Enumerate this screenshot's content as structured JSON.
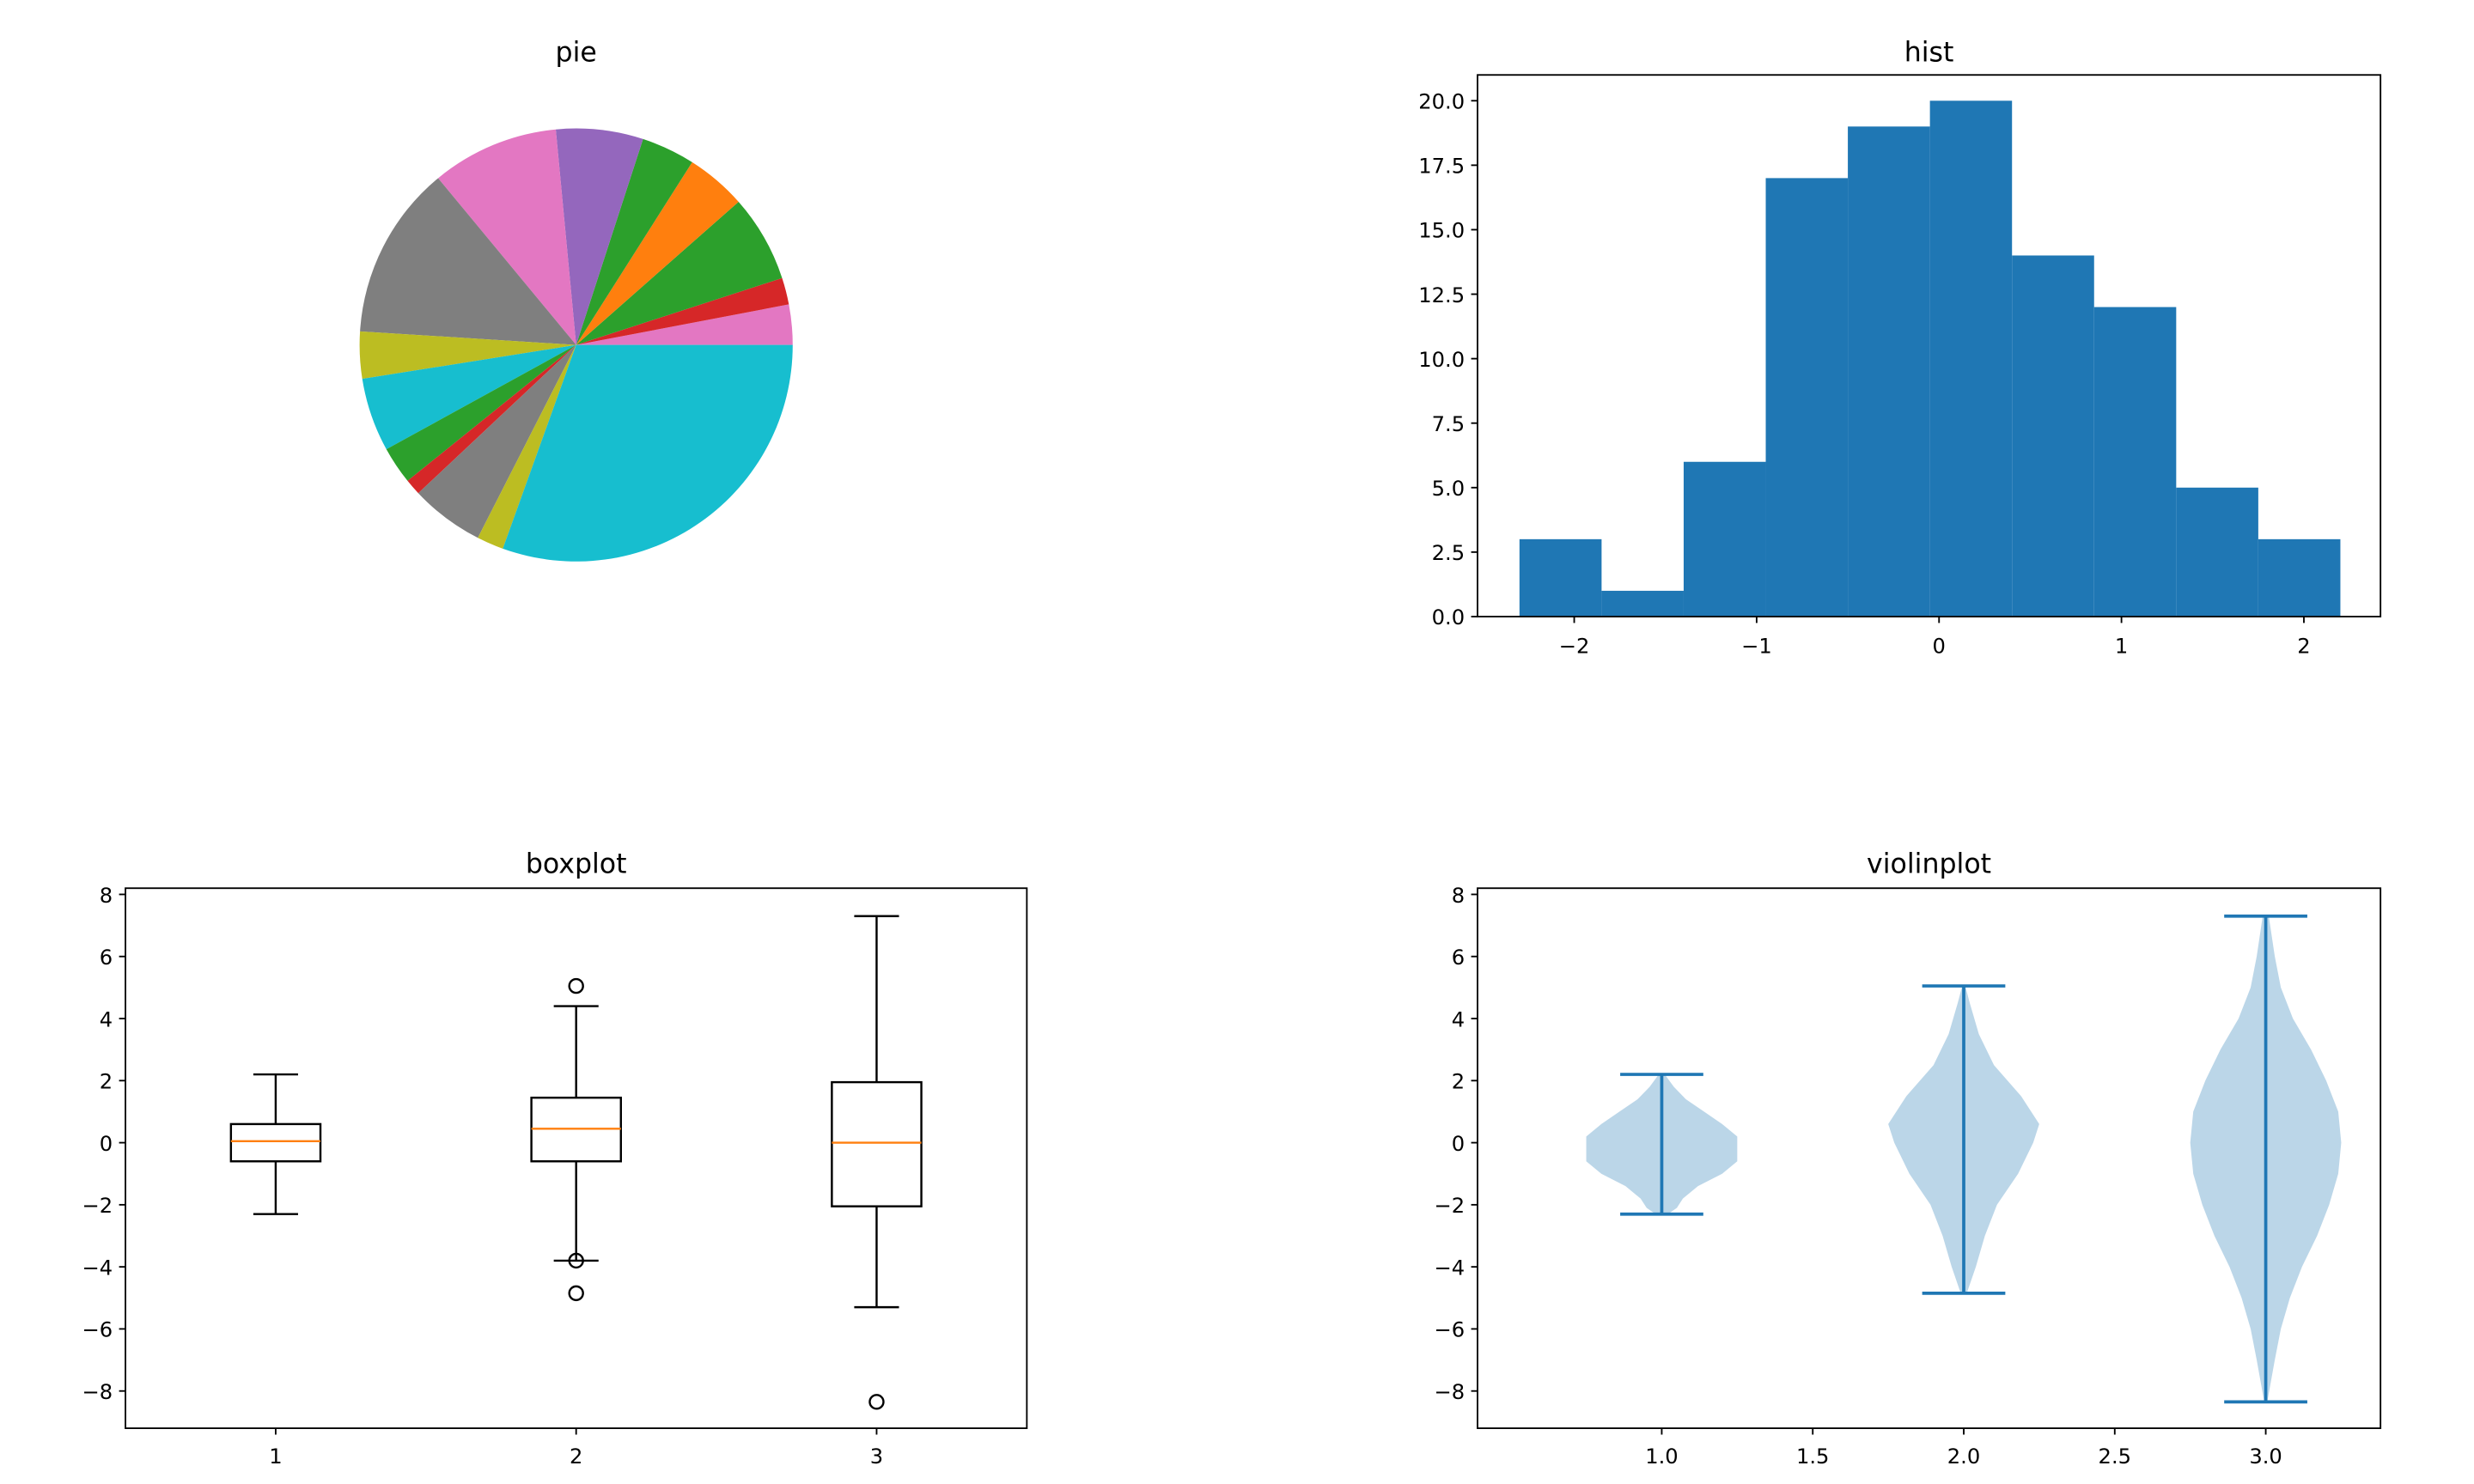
{
  "chart_data": [
    {
      "type": "pie",
      "title": "pie",
      "slices": [
        {
          "value": 3.0,
          "color": "#e377c2"
        },
        {
          "value": 2.0,
          "color": "#d62728"
        },
        {
          "value": 6.5,
          "color": "#2ca02c"
        },
        {
          "value": 4.5,
          "color": "#ff7f0e"
        },
        {
          "value": 4.0,
          "color": "#2ca02c"
        },
        {
          "value": 6.5,
          "color": "#9467bd"
        },
        {
          "value": 9.5,
          "color": "#e377c2"
        },
        {
          "value": 13.0,
          "color": "#7f7f7f"
        },
        {
          "value": 3.5,
          "color": "#bcbd22"
        },
        {
          "value": 5.5,
          "color": "#17becf"
        },
        {
          "value": 2.8,
          "color": "#2ca02c"
        },
        {
          "value": 1.2,
          "color": "#d62728"
        },
        {
          "value": 5.5,
          "color": "#7f7f7f"
        },
        {
          "value": 2.0,
          "color": "#bcbd22"
        },
        {
          "value": 30.5,
          "color": "#17becf"
        }
      ]
    },
    {
      "type": "bar",
      "title": "hist",
      "bin_edges": [
        -2.3,
        -1.85,
        -1.4,
        -0.95,
        -0.5,
        -0.05,
        0.4,
        0.85,
        1.3,
        1.75,
        2.2
      ],
      "counts": [
        3,
        1,
        6,
        17,
        19,
        20,
        14,
        12,
        5,
        3
      ],
      "color": "#1f77b4",
      "xlim": [
        -2.53,
        2.42
      ],
      "ylim": [
        0,
        21
      ],
      "xticks": [
        -2,
        -1,
        0,
        1,
        2
      ],
      "xtick_labels": [
        "−2",
        "−1",
        "0",
        "1",
        "2"
      ],
      "yticks": [
        0,
        2.5,
        5,
        7.5,
        10,
        12.5,
        15,
        17.5,
        20
      ],
      "ytick_labels": [
        "0.0",
        "2.5",
        "5.0",
        "7.5",
        "10.0",
        "12.5",
        "15.0",
        "17.5",
        "20.0"
      ]
    },
    {
      "type": "boxplot",
      "title": "boxplot",
      "xlim": [
        0.5,
        3.5
      ],
      "ylim": [
        -9.2,
        8.2
      ],
      "xticks": [
        1,
        2,
        3
      ],
      "xtick_labels": [
        "1",
        "2",
        "3"
      ],
      "yticks": [
        -8,
        -6,
        -4,
        -2,
        0,
        2,
        4,
        6,
        8
      ],
      "ytick_labels": [
        "−8",
        "−6",
        "−4",
        "−2",
        "0",
        "2",
        "4",
        "6",
        "8"
      ],
      "median_color": "#ff7f0e",
      "boxes": [
        {
          "pos": 1,
          "whislo": -2.3,
          "q1": -0.6,
          "med": 0.05,
          "q3": 0.6,
          "whishi": 2.2,
          "fliers": []
        },
        {
          "pos": 2,
          "whislo": -3.8,
          "q1": -0.6,
          "med": 0.45,
          "q3": 1.45,
          "whishi": 4.4,
          "fliers": [
            5.05,
            -3.8,
            -4.85
          ]
        },
        {
          "pos": 3,
          "whislo": -5.3,
          "q1": -2.05,
          "med": 0.0,
          "q3": 1.95,
          "whishi": 7.3,
          "fliers": [
            -8.35
          ]
        }
      ]
    },
    {
      "type": "violin",
      "title": "violinplot",
      "xlim": [
        0.39,
        3.38
      ],
      "ylim": [
        -9.2,
        8.2
      ],
      "xticks": [
        1.0,
        1.5,
        2.0,
        2.5,
        3.0
      ],
      "xtick_labels": [
        "1.0",
        "1.5",
        "2.0",
        "2.5",
        "3.0"
      ],
      "yticks": [
        -8,
        -6,
        -4,
        -2,
        0,
        2,
        4,
        6,
        8
      ],
      "ytick_labels": [
        "−8",
        "−6",
        "−4",
        "−2",
        "0",
        "2",
        "4",
        "6",
        "8"
      ],
      "body_color": "#1f77b4",
      "line_color": "#1f77b4",
      "violins": [
        {
          "pos": 1.0,
          "min": -2.3,
          "max": 2.2,
          "profile": [
            [
              -2.3,
              0.02
            ],
            [
              -2.1,
              0.05
            ],
            [
              -1.8,
              0.07
            ],
            [
              -1.4,
              0.12
            ],
            [
              -1.0,
              0.2
            ],
            [
              -0.6,
              0.25
            ],
            [
              -0.2,
              0.25
            ],
            [
              0.2,
              0.25
            ],
            [
              0.6,
              0.2
            ],
            [
              1.0,
              0.14
            ],
            [
              1.4,
              0.08
            ],
            [
              1.8,
              0.04
            ],
            [
              2.2,
              0.01
            ]
          ]
        },
        {
          "pos": 2.0,
          "min": -4.85,
          "max": 5.05,
          "profile": [
            [
              -4.85,
              0.01
            ],
            [
              -4.0,
              0.04
            ],
            [
              -3.0,
              0.07
            ],
            [
              -2.0,
              0.11
            ],
            [
              -1.0,
              0.18
            ],
            [
              0.0,
              0.23
            ],
            [
              0.6,
              0.25
            ],
            [
              1.5,
              0.19
            ],
            [
              2.5,
              0.1
            ],
            [
              3.5,
              0.05
            ],
            [
              4.5,
              0.02
            ],
            [
              5.05,
              0.005
            ]
          ]
        },
        {
          "pos": 3.0,
          "min": -8.35,
          "max": 7.3,
          "profile": [
            [
              -8.35,
              0.005
            ],
            [
              -7.0,
              0.03
            ],
            [
              -6.0,
              0.05
            ],
            [
              -5.0,
              0.08
            ],
            [
              -4.0,
              0.12
            ],
            [
              -3.0,
              0.17
            ],
            [
              -2.0,
              0.21
            ],
            [
              -1.0,
              0.24
            ],
            [
              0.0,
              0.25
            ],
            [
              1.0,
              0.24
            ],
            [
              2.0,
              0.2
            ],
            [
              3.0,
              0.15
            ],
            [
              4.0,
              0.09
            ],
            [
              5.0,
              0.05
            ],
            [
              6.0,
              0.03
            ],
            [
              7.3,
              0.01
            ]
          ]
        }
      ]
    }
  ]
}
